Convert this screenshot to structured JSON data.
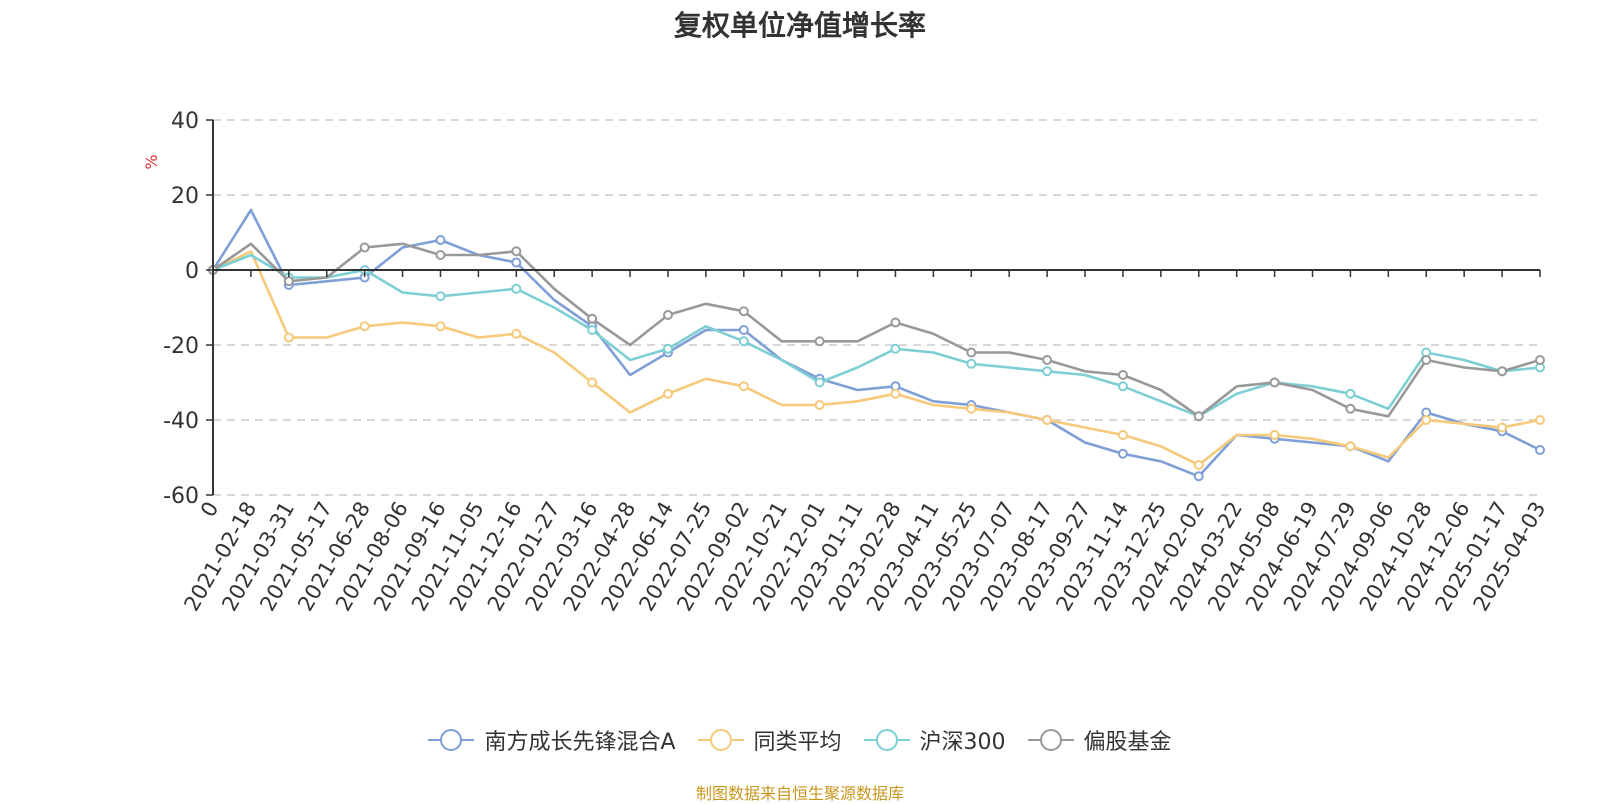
{
  "chart_data": {
    "type": "line",
    "title": "复权单位净值增长率",
    "ylabel": "%",
    "ylim": [
      -60,
      40
    ],
    "yticks": [
      40,
      20,
      0,
      -20,
      -40,
      -60
    ],
    "grid": true,
    "legend_position": "bottom",
    "x_tick_labels": [
      "0",
      "2021-02-18",
      "2021-03-31",
      "2021-05-17",
      "2021-06-28",
      "2021-08-06",
      "2021-09-16",
      "2021-11-05",
      "2021-12-16",
      "2022-01-27",
      "2022-03-16",
      "2022-04-28",
      "2022-06-14",
      "2022-07-25",
      "2022-09-02",
      "2022-10-21",
      "2022-12-01",
      "2023-01-11",
      "2023-02-28",
      "2023-04-11",
      "2023-05-25",
      "2023-07-07",
      "2023-08-17",
      "2023-09-27",
      "2023-11-14",
      "2023-12-25",
      "2024-02-02",
      "2024-03-22",
      "2024-05-08",
      "2024-06-19",
      "2024-07-29",
      "2024-09-06",
      "2024-10-28",
      "2024-12-06",
      "2025-01-17",
      "2025-04-03"
    ],
    "series": [
      {
        "name": "南方成长先锋混合A",
        "color": "#7f9fd6",
        "values": [
          0,
          16,
          -4,
          -3,
          -2,
          6,
          8,
          4,
          2,
          -8,
          -15,
          -28,
          -22,
          -16,
          -16,
          -24,
          -29,
          -32,
          -31,
          -35,
          -36,
          -38,
          -40,
          -46,
          -49,
          -51,
          -55,
          -44,
          -45,
          -46,
          -47,
          -51,
          -38,
          -41,
          -43,
          -48
        ]
      },
      {
        "name": "同类平均",
        "color": "#f7c97a",
        "values": [
          0,
          5,
          -18,
          -18,
          -15,
          -14,
          -15,
          -18,
          -17,
          -22,
          -30,
          -38,
          -33,
          -29,
          -31,
          -36,
          -36,
          -35,
          -33,
          -36,
          -37,
          -38,
          -40,
          -42,
          -44,
          -47,
          -52,
          -44,
          -44,
          -45,
          -47,
          -50,
          -40,
          -41,
          -42,
          -40
        ]
      },
      {
        "name": "沪深300",
        "color": "#7dcfd4",
        "values": [
          0,
          4,
          -2,
          -2,
          0,
          -6,
          -7,
          -6,
          -5,
          -10,
          -16,
          -24,
          -21,
          -15,
          -19,
          -24,
          -30,
          -26,
          -21,
          -22,
          -25,
          -26,
          -27,
          -28,
          -31,
          -35,
          -39,
          -33,
          -30,
          -31,
          -33,
          -37,
          -22,
          -24,
          -27,
          -26
        ]
      },
      {
        "name": "偏股基金",
        "color": "#999999",
        "values": [
          0,
          7,
          -3,
          -2,
          6,
          7,
          4,
          4,
          5,
          -5,
          -13,
          -20,
          -12,
          -9,
          -11,
          -19,
          -19,
          -19,
          -14,
          -17,
          -22,
          -22,
          -24,
          -27,
          -28,
          -32,
          -39,
          -31,
          -30,
          -32,
          -37,
          -39,
          -24,
          -26,
          -27,
          -24
        ]
      }
    ]
  },
  "source_note": "制图数据来自恒生聚源数据库"
}
